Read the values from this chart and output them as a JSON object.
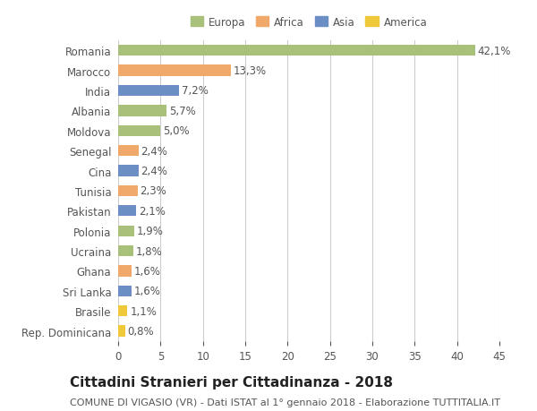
{
  "categories": [
    "Romania",
    "Marocco",
    "India",
    "Albania",
    "Moldova",
    "Senegal",
    "Cina",
    "Tunisia",
    "Pakistan",
    "Polonia",
    "Ucraina",
    "Ghana",
    "Sri Lanka",
    "Brasile",
    "Rep. Dominicana"
  ],
  "values": [
    42.1,
    13.3,
    7.2,
    5.7,
    5.0,
    2.4,
    2.4,
    2.3,
    2.1,
    1.9,
    1.8,
    1.6,
    1.6,
    1.1,
    0.8
  ],
  "labels": [
    "42,1%",
    "13,3%",
    "7,2%",
    "5,7%",
    "5,0%",
    "2,4%",
    "2,4%",
    "2,3%",
    "2,1%",
    "1,9%",
    "1,8%",
    "1,6%",
    "1,6%",
    "1,1%",
    "0,8%"
  ],
  "colors": [
    "#a8c07a",
    "#f0a86b",
    "#6b8ec4",
    "#a8c07a",
    "#a8c07a",
    "#f0a86b",
    "#6b8ec4",
    "#f0a86b",
    "#6b8ec4",
    "#a8c07a",
    "#a8c07a",
    "#f0a86b",
    "#6b8ec4",
    "#f0c93a",
    "#f0c93a"
  ],
  "continent_colors": {
    "Europa": "#a8c07a",
    "Africa": "#f0a86b",
    "Asia": "#6b8ec4",
    "America": "#f0c93a"
  },
  "title": "Cittadini Stranieri per Cittadinanza - 2018",
  "subtitle": "COMUNE DI VIGASIO (VR) - Dati ISTAT al 1° gennaio 2018 - Elaborazione TUTTITALIA.IT",
  "xlim": [
    0,
    45
  ],
  "xticks": [
    0,
    5,
    10,
    15,
    20,
    25,
    30,
    35,
    40,
    45
  ],
  "background_color": "#ffffff",
  "bar_height": 0.55,
  "grid_color": "#cccccc",
  "label_fontsize": 8.5,
  "tick_fontsize": 8.5,
  "title_fontsize": 11,
  "subtitle_fontsize": 8
}
